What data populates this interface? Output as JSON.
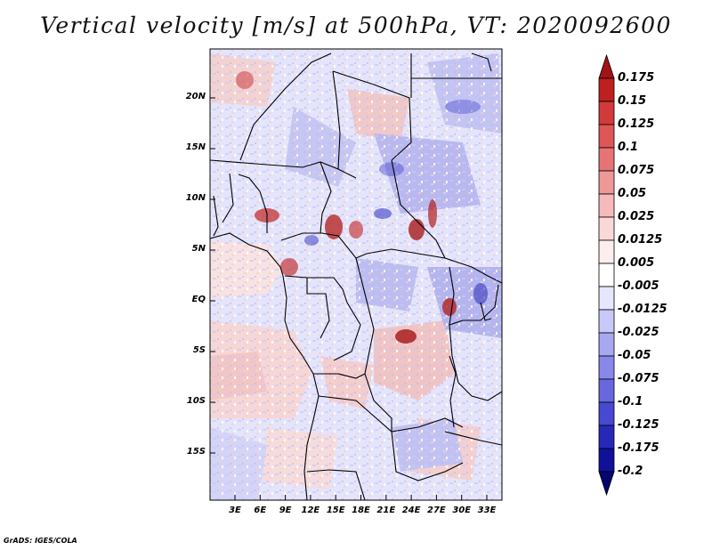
{
  "title": "Vertical velocity [m/s] at 500hPa, VT: 2020092600",
  "footer": "GrADS: IGES/COLA",
  "map": {
    "y_tick_labels": [
      "20N",
      "15N",
      "10N",
      "5N",
      "EQ",
      "5S",
      "10S",
      "15S"
    ],
    "x_tick_labels": [
      "3E",
      "6E",
      "9E",
      "12E",
      "15E",
      "18E",
      "21E",
      "24E",
      "27E",
      "30E",
      "33E"
    ]
  },
  "colorbar": {
    "labels": [
      "0.175",
      "0.15",
      "0.125",
      "0.1",
      "0.075",
      "0.05",
      "0.025",
      "0.0125",
      "0.005",
      "-0.005",
      "-0.0125",
      "-0.025",
      "-0.05",
      "-0.075",
      "-0.1",
      "-0.125",
      "-0.175",
      "-0.2"
    ],
    "colors": [
      "#a01414",
      "#be2020",
      "#d23a3a",
      "#de5656",
      "#e77474",
      "#ef9898",
      "#f6baba",
      "#fad8d8",
      "#fdeeee",
      "#ffffff",
      "#e6e6ff",
      "#c8c8fa",
      "#a8a8f2",
      "#8888ea",
      "#6868de",
      "#4848d0",
      "#2828b8",
      "#10109a",
      "#05056e"
    ]
  }
}
